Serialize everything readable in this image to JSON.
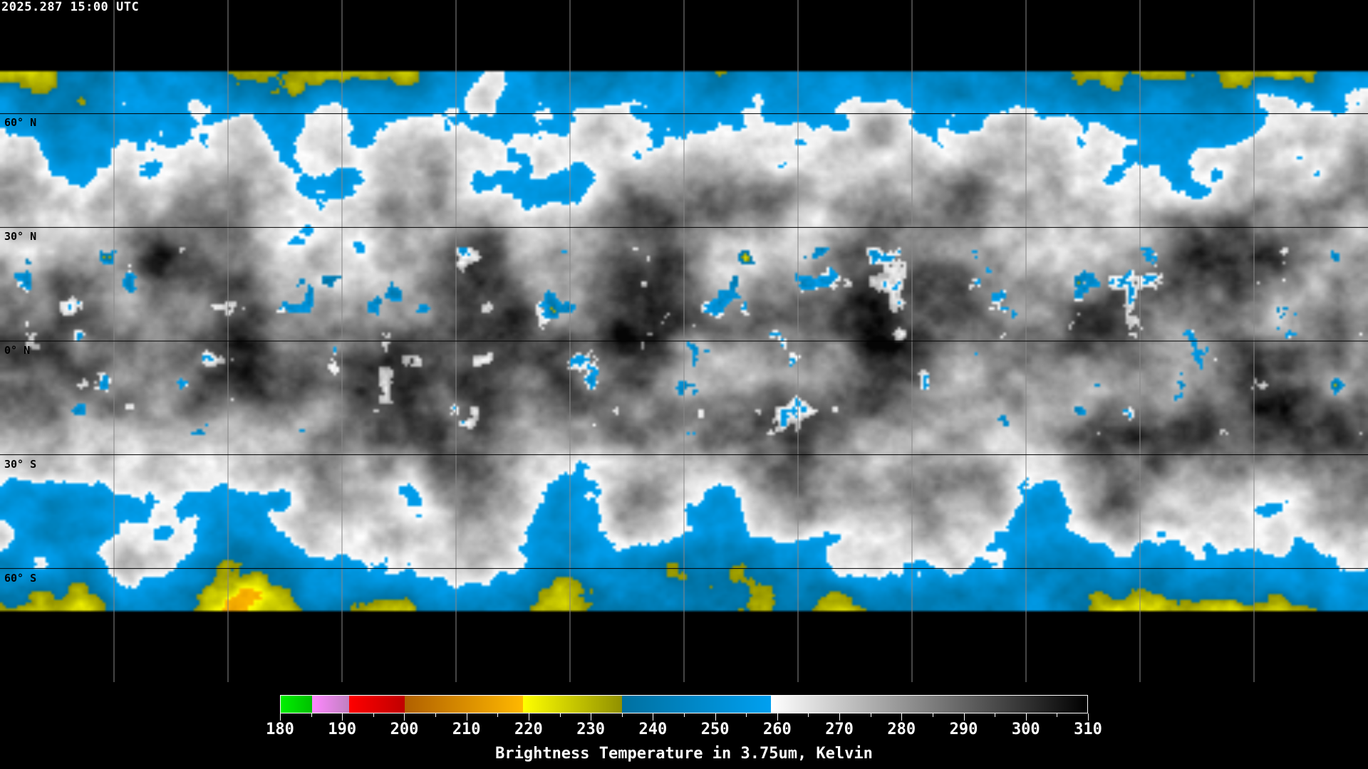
{
  "timestamp": "2025.287 15:00 UTC",
  "map": {
    "projection": "equirectangular",
    "lon_range": [
      -180,
      180
    ],
    "lat_range": [
      -90,
      90
    ],
    "grid_spacing_deg": 30,
    "lat_labels": [
      "60° N",
      "30° N",
      "0° N",
      "30° S",
      "60° S"
    ],
    "grid_color": "#000000",
    "coastline_color": "#ffffff"
  },
  "colorbar": {
    "title": "Brightness Temperature in 3.75um, Kelvin",
    "range": [
      180,
      310
    ],
    "tick_labels": [
      "180",
      "190",
      "200",
      "210",
      "220",
      "230",
      "240",
      "250",
      "260",
      "270",
      "280",
      "290",
      "300",
      "310"
    ],
    "segments": [
      {
        "from": 180,
        "to": 185,
        "colors": [
          "#00f000",
          "#00c000"
        ]
      },
      {
        "from": 185,
        "to": 191,
        "colors": [
          "#ff88ff",
          "#c080c0"
        ]
      },
      {
        "from": 191,
        "to": 200,
        "colors": [
          "#ff0000",
          "#c00000"
        ]
      },
      {
        "from": 200,
        "to": 219,
        "colors": [
          "#b06000",
          "#ffb800"
        ]
      },
      {
        "from": 219,
        "to": 235,
        "colors": [
          "#ffff00",
          "#909000"
        ]
      },
      {
        "from": 235,
        "to": 259,
        "colors": [
          "#0070a0",
          "#00a0f0"
        ]
      },
      {
        "from": 259,
        "to": 310,
        "colors": [
          "#ffffff",
          "#000000"
        ]
      }
    ]
  }
}
